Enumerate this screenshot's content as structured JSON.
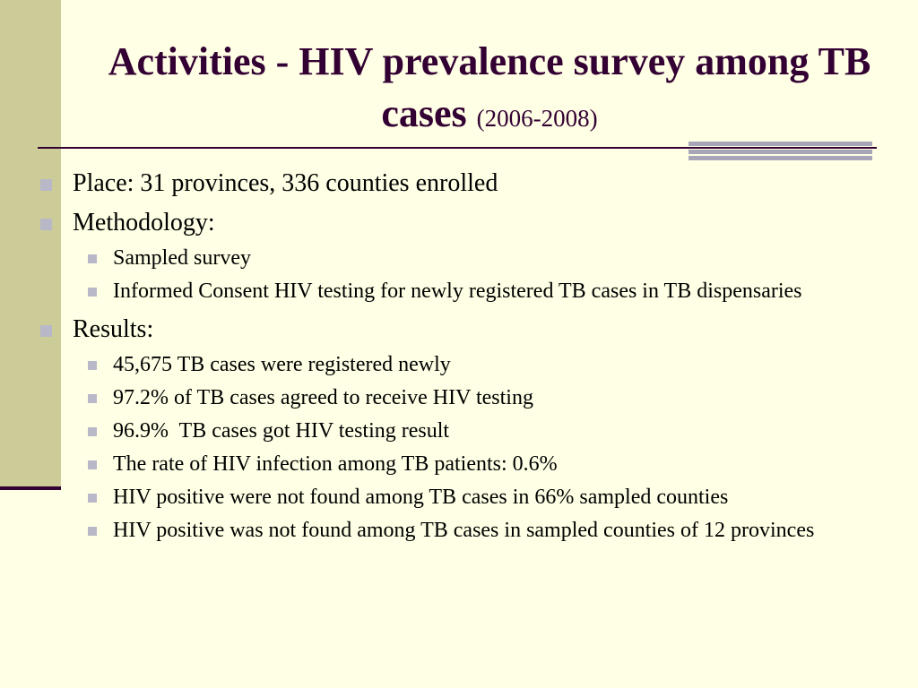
{
  "slide": {
    "title_main": "Activities - HIV prevalence survey among TB cases",
    "title_sub": "(2006-2008)",
    "items": [
      {
        "label": "Place: 31 provinces, 336 counties enrolled",
        "children": []
      },
      {
        "label": "Methodology:",
        "children": [
          "Sampled survey",
          "Informed Consent HIV testing for newly registered TB cases in TB dispensaries"
        ]
      },
      {
        "label": "Results:",
        "children": [
          "45,675 TB cases were registered newly",
          "97.2% of TB cases agreed to receive HIV testing",
          "96.9%  TB cases got HIV testing result",
          "The rate of HIV infection among TB patients: 0.6%",
          "HIV positive were not found among TB cases in 66% sampled counties",
          "HIV positive was not found among TB cases in sampled counties of 12 provinces"
        ]
      }
    ]
  },
  "colors": {
    "background": "#ffffe5",
    "side_band": "#cccc99",
    "title": "#330033",
    "bullet": "#b8b8c8"
  }
}
